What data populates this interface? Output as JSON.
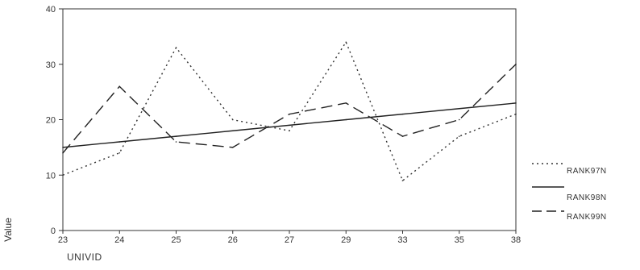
{
  "chart_data": {
    "type": "line",
    "title": "",
    "xlabel": "UNIVID",
    "ylabel": "Value",
    "categories": [
      "23",
      "24",
      "25",
      "26",
      "27",
      "29",
      "33",
      "35",
      "38"
    ],
    "ylim": [
      0,
      40
    ],
    "yticks": [
      "0",
      "10",
      "20",
      "30",
      "40"
    ],
    "grid": false,
    "legend_position": "right",
    "series": [
      {
        "name": "RANK97N",
        "style": "dotted",
        "color": "#333333",
        "values": [
          10,
          14,
          33,
          20,
          18,
          34,
          9,
          17,
          21
        ]
      },
      {
        "name": "RANK98N",
        "style": "solid",
        "color": "#222222",
        "values": [
          15,
          16,
          17,
          18,
          19,
          20,
          21,
          22,
          23
        ]
      },
      {
        "name": "RANK99N",
        "style": "dashed",
        "color": "#222222",
        "values": [
          14,
          26,
          16,
          15,
          21,
          23,
          17,
          20,
          30
        ]
      }
    ]
  }
}
